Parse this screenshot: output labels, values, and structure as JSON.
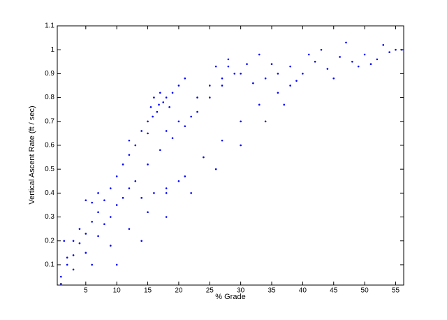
{
  "chart_data": {
    "type": "scatter",
    "xlabel": "% Grade",
    "ylabel": "Vertical Ascent Rate (ft / sec)",
    "xlim": [
      0.4,
      56.3
    ],
    "ylim": [
      0.015,
      1.1
    ],
    "xticks": [
      5,
      10,
      15,
      20,
      25,
      30,
      35,
      40,
      45,
      50,
      55
    ],
    "yticks": [
      0.1,
      0.2,
      0.3,
      0.4,
      0.5,
      0.6,
      0.7,
      0.8,
      0.9,
      1,
      1.1
    ],
    "color": "#0000ff",
    "x": [
      1,
      2,
      3,
      4,
      5,
      6,
      7,
      8,
      9,
      10,
      11,
      12,
      13,
      14,
      15,
      15.5,
      16,
      16.5,
      17,
      17.5,
      18,
      15.8,
      16.8,
      18.5,
      19,
      20,
      21,
      3,
      5,
      7,
      9,
      11,
      13,
      15,
      17,
      19,
      21,
      23,
      25,
      27,
      29,
      31,
      33,
      6,
      9,
      12,
      15,
      18,
      21,
      24,
      27,
      30,
      33,
      36,
      39,
      10,
      14,
      18,
      22,
      26,
      30,
      34,
      37,
      12,
      14,
      16,
      18,
      20,
      5,
      6,
      7,
      12,
      15,
      18,
      20,
      22,
      23,
      25,
      27,
      28,
      30,
      32,
      34,
      36,
      38,
      40,
      42,
      44,
      46,
      47,
      48,
      50,
      52,
      53,
      54,
      55,
      56,
      45,
      49,
      51,
      41,
      43,
      38,
      35,
      26,
      28,
      1.5,
      2,
      3,
      4,
      8,
      10,
      1
    ],
    "values": [
      0.05,
      0.1,
      0.14,
      0.19,
      0.23,
      0.28,
      0.32,
      0.37,
      0.42,
      0.47,
      0.52,
      0.56,
      0.6,
      0.66,
      0.7,
      0.76,
      0.8,
      0.74,
      0.82,
      0.78,
      0.8,
      0.72,
      0.77,
      0.76,
      0.82,
      0.85,
      0.88,
      0.08,
      0.15,
      0.22,
      0.3,
      0.38,
      0.45,
      0.52,
      0.58,
      0.63,
      0.68,
      0.74,
      0.8,
      0.85,
      0.9,
      0.94,
      0.98,
      0.1,
      0.18,
      0.25,
      0.32,
      0.4,
      0.47,
      0.55,
      0.62,
      0.7,
      0.77,
      0.82,
      0.87,
      0.1,
      0.2,
      0.3,
      0.4,
      0.5,
      0.6,
      0.7,
      0.77,
      0.42,
      0.38,
      0.4,
      0.42,
      0.45,
      0.37,
      0.36,
      0.4,
      0.62,
      0.65,
      0.66,
      0.7,
      0.72,
      0.8,
      0.85,
      0.88,
      0.93,
      0.9,
      0.86,
      0.88,
      0.9,
      0.93,
      0.9,
      0.95,
      0.92,
      0.97,
      1.03,
      0.95,
      0.98,
      0.96,
      1.02,
      0.99,
      1.0,
      1.0,
      0.88,
      0.93,
      0.94,
      0.98,
      1.0,
      0.85,
      0.94,
      0.93,
      0.96,
      0.2,
      0.13,
      0.2,
      0.25,
      0.27,
      0.35,
      0.02
    ]
  }
}
